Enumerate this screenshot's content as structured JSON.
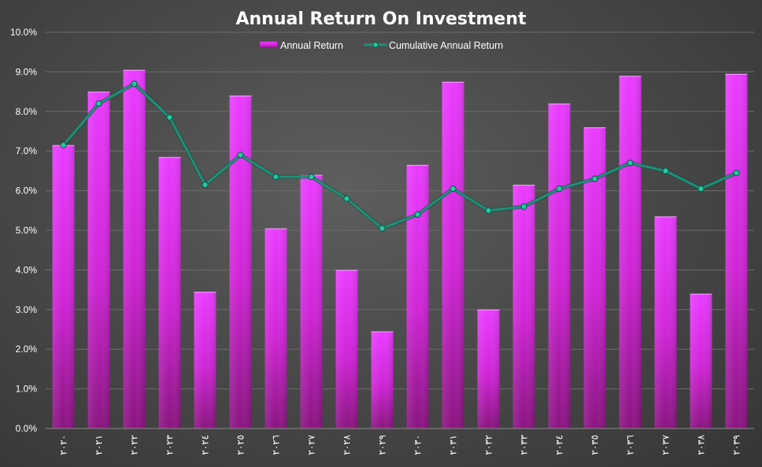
{
  "chart_data": {
    "type": "bar",
    "title": "Annual Return On Investment",
    "xlabel": "",
    "ylabel": "",
    "ylim": [
      0,
      10
    ],
    "y_tick_labels": [
      "0.0%",
      "1.0%",
      "2.0%",
      "3.0%",
      "4.0%",
      "5.0%",
      "6.0%",
      "7.0%",
      "8.0%",
      "9.0%",
      "10.0%"
    ],
    "categories": [
      "٢٠٢٠",
      "٢٠٢١",
      "٢٠٢٢",
      "٢٠٢٣",
      "٢٠٢٤",
      "٢٠٢٥",
      "٢٠٢٦",
      "٢٠٢٧",
      "٢٠٢٨",
      "٢٠٢٩",
      "٢٠٣٠",
      "٢٠٣١",
      "٢٠٣٢",
      "٢٠٣٣",
      "٢٠٣٤",
      "٢٠٣٥",
      "٢٠٣٦",
      "٢٠٣٧",
      "٢٠٣٨",
      "٢٠٣٩"
    ],
    "grid": true,
    "legend": "top-center",
    "series": [
      {
        "name": "Annual Return",
        "type": "bar",
        "color": "#e030f0",
        "values": [
          7.15,
          8.5,
          9.05,
          6.85,
          3.45,
          8.4,
          5.05,
          6.4,
          4.0,
          2.45,
          6.65,
          8.75,
          3.0,
          6.15,
          8.2,
          7.6,
          8.9,
          5.35,
          3.4,
          8.95
        ]
      },
      {
        "name": "Cumulative Annual Return",
        "type": "line",
        "color": "#1f8f76",
        "values": [
          7.15,
          8.2,
          8.7,
          7.85,
          6.15,
          6.9,
          6.35,
          6.35,
          5.8,
          5.05,
          5.4,
          6.05,
          5.5,
          5.6,
          6.05,
          6.3,
          6.7,
          6.5,
          6.05,
          6.45
        ]
      }
    ]
  }
}
